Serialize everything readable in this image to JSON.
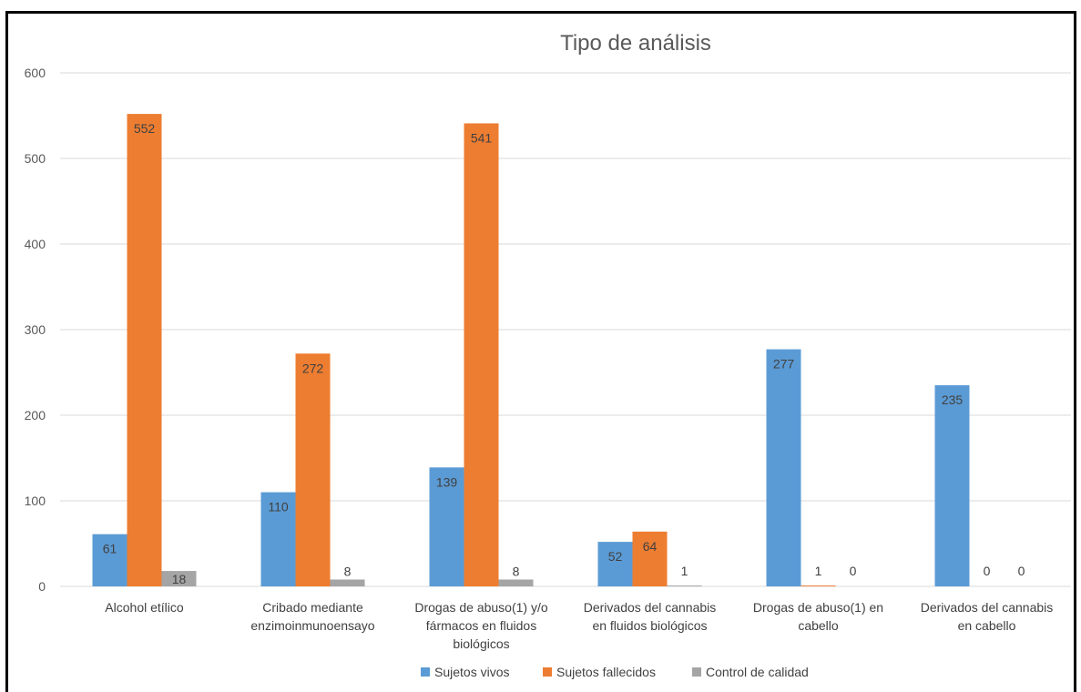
{
  "chart_data": {
    "type": "bar",
    "title": "Tipo de análisis",
    "xlabel": "",
    "ylabel": "",
    "ylim": [
      0,
      600
    ],
    "yticks": [
      0,
      100,
      200,
      300,
      400,
      500,
      600
    ],
    "grid": true,
    "legend_position": "bottom",
    "categories": [
      [
        "Alcohol etílico"
      ],
      [
        "Cribado mediante",
        "enzimoinmunoensayo"
      ],
      [
        "Drogas de abuso(1) y/o",
        "fármacos en fluidos",
        "biológicos"
      ],
      [
        "Derivados del cannabis",
        "en fluidos biológicos"
      ],
      [
        "Drogas de abuso(1) en",
        "cabello"
      ],
      [
        "Derivados del cannabis",
        "en cabello"
      ]
    ],
    "series": [
      {
        "name": "Sujetos vivos",
        "color": "#5b9bd5",
        "values": [
          61,
          110,
          139,
          52,
          277,
          235
        ],
        "labels": [
          "61",
          "110",
          "139",
          "52",
          "277",
          "235"
        ]
      },
      {
        "name": "Sujetos fallecidos",
        "color": "#ed7d31",
        "values": [
          552,
          272,
          541,
          64,
          1,
          0
        ],
        "labels": [
          "552",
          "272",
          "541",
          "64",
          "1",
          "0"
        ]
      },
      {
        "name": "Control de calidad",
        "color": "#a5a5a5",
        "values": [
          18,
          8,
          8,
          1,
          0,
          0
        ],
        "labels": [
          "18",
          "8",
          "8",
          "1",
          "0",
          "0"
        ]
      }
    ]
  }
}
